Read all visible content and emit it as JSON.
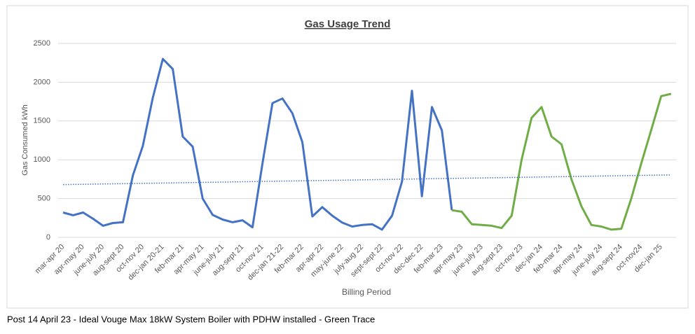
{
  "chart_data": {
    "type": "line",
    "title": "Gas Usage Trend",
    "y_label": "Gas Consumed kWh",
    "x_label": "Billing Period",
    "note": "Post 14 April 23 - Ideal Vouge Max 18kW System Boiler with PDHW installed - Green Trace",
    "categories": [
      "mar-apr 20",
      null,
      "apr-may 20",
      null,
      "june-july 20",
      null,
      "aug-sept 20",
      null,
      "oct-nov 20",
      null,
      "dec-jan 20-21",
      null,
      "feb-mar 21",
      null,
      "apr-may 21",
      null,
      "june-july 21",
      null,
      "aug-sept 21",
      null,
      "oct-nov 21",
      null,
      "dec-jan 21-22",
      null,
      "feb-mar 22",
      null,
      "apr-apr 22",
      null,
      "may-june 22",
      null,
      "july-aug 22",
      null,
      "sept-sept 22",
      null,
      "oct-nov 22",
      null,
      "dec-dec 22",
      null,
      "feb-mar 23",
      null,
      "apr-may 23",
      null,
      "june-july 23",
      null,
      "aug-sept 23",
      null,
      "oct-nov 23",
      null,
      "dec-jan 24",
      null,
      "feb-mar 24",
      null,
      "apr-may 24",
      null,
      "june-july 24",
      null,
      "aug-sept 24",
      null,
      "oct-nov24",
      null,
      "dec-jan 25",
      null
    ],
    "series": [
      {
        "color": "#4472c4",
        "values": [
          320,
          285,
          320,
          240,
          150,
          185,
          195,
          800,
          1180,
          1800,
          2300,
          2170,
          1300,
          1170,
          500,
          290,
          230,
          195,
          220,
          130,
          950,
          1730,
          1790,
          1600,
          1230,
          270,
          390,
          280,
          190,
          140,
          160,
          170,
          100,
          280,
          720,
          1890,
          530,
          1680,
          1380,
          350,
          null,
          null,
          null,
          null,
          null,
          null,
          null,
          null,
          null,
          null,
          null,
          null,
          null,
          null,
          null,
          null,
          null,
          null,
          null,
          null,
          null,
          null
        ]
      },
      {
        "color": "#70ad47",
        "values": [
          null,
          null,
          null,
          null,
          null,
          null,
          null,
          null,
          null,
          null,
          null,
          null,
          null,
          null,
          null,
          null,
          null,
          null,
          null,
          null,
          null,
          null,
          null,
          null,
          null,
          null,
          null,
          null,
          null,
          null,
          null,
          null,
          null,
          null,
          null,
          null,
          null,
          null,
          null,
          350,
          330,
          170,
          160,
          150,
          120,
          280,
          1000,
          1540,
          1680,
          1300,
          1200,
          750,
          400,
          160,
          140,
          100,
          110,
          500,
          950,
          1380,
          1820,
          1850
        ]
      }
    ],
    "trendline": {
      "color": "#4472c4",
      "values": [
        680,
        805
      ]
    },
    "ylim": [
      0,
      2500
    ],
    "yticks": [
      0,
      500,
      1000,
      1500,
      2000,
      2500
    ],
    "grid": true
  }
}
